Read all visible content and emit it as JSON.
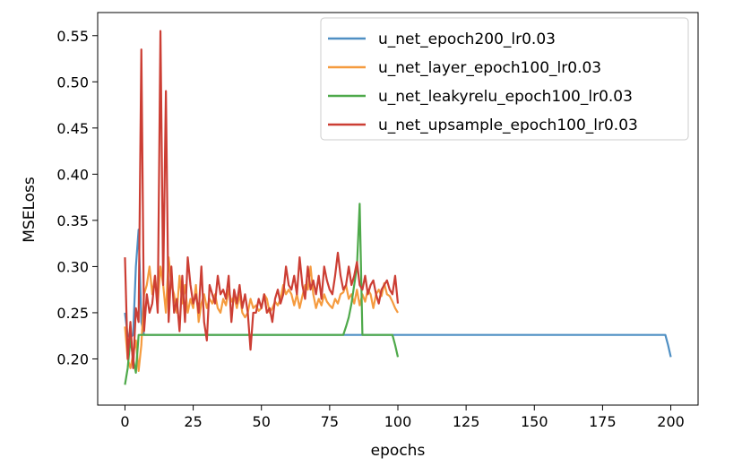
{
  "chart_data": {
    "type": "line",
    "xlabel": "epochs",
    "ylabel": "MSELoss",
    "xlim": [
      -10,
      210
    ],
    "ylim": [
      0.15,
      0.575
    ],
    "xticks": [
      0,
      25,
      50,
      75,
      100,
      125,
      150,
      175,
      200
    ],
    "yticks": [
      0.2,
      0.25,
      0.3,
      0.35,
      0.4,
      0.45,
      0.5,
      0.55
    ],
    "legend_position": "top-right",
    "grid": false,
    "series": [
      {
        "name": "u_net_epoch200_lr0.03",
        "color": "#4f8fc3",
        "x": [
          0,
          1,
          2,
          3,
          4,
          5,
          6,
          7,
          8,
          10,
          20,
          50,
          100,
          150,
          198,
          199,
          200
        ],
        "y": [
          0.25,
          0.225,
          0.223,
          0.226,
          0.3,
          0.34,
          0.24,
          0.226,
          0.226,
          0.226,
          0.226,
          0.226,
          0.226,
          0.226,
          0.226,
          0.215,
          0.202
        ]
      },
      {
        "name": "u_net_layer_epoch100_lr0.03",
        "color": "#f59b3f",
        "x": [
          0,
          1,
          2,
          3,
          4,
          5,
          6,
          7,
          8,
          9,
          10,
          11,
          12,
          13,
          14,
          15,
          16,
          17,
          18,
          19,
          20,
          21,
          22,
          23,
          24,
          25,
          26,
          27,
          28,
          29,
          30,
          31,
          32,
          33,
          34,
          35,
          36,
          37,
          38,
          39,
          40,
          41,
          42,
          43,
          44,
          45,
          46,
          47,
          48,
          49,
          50,
          51,
          52,
          53,
          54,
          55,
          56,
          57,
          58,
          59,
          60,
          61,
          62,
          63,
          64,
          65,
          66,
          67,
          68,
          69,
          70,
          71,
          72,
          73,
          74,
          75,
          76,
          77,
          78,
          79,
          80,
          81,
          82,
          83,
          84,
          85,
          86,
          87,
          88,
          89,
          90,
          91,
          92,
          93,
          94,
          95,
          96,
          97,
          98,
          99,
          100
        ],
        "y": [
          0.235,
          0.2,
          0.19,
          0.205,
          0.22,
          0.187,
          0.215,
          0.27,
          0.28,
          0.3,
          0.27,
          0.29,
          0.26,
          0.3,
          0.28,
          0.25,
          0.31,
          0.28,
          0.27,
          0.25,
          0.29,
          0.26,
          0.28,
          0.25,
          0.265,
          0.255,
          0.28,
          0.24,
          0.26,
          0.27,
          0.255,
          0.265,
          0.26,
          0.27,
          0.255,
          0.25,
          0.265,
          0.258,
          0.275,
          0.262,
          0.268,
          0.255,
          0.27,
          0.25,
          0.245,
          0.25,
          0.265,
          0.255,
          0.258,
          0.252,
          0.255,
          0.27,
          0.265,
          0.25,
          0.255,
          0.262,
          0.258,
          0.265,
          0.28,
          0.27,
          0.275,
          0.27,
          0.258,
          0.27,
          0.255,
          0.268,
          0.28,
          0.275,
          0.3,
          0.27,
          0.255,
          0.265,
          0.258,
          0.27,
          0.262,
          0.258,
          0.255,
          0.265,
          0.26,
          0.27,
          0.272,
          0.28,
          0.265,
          0.27,
          0.26,
          0.275,
          0.258,
          0.27,
          0.262,
          0.275,
          0.27,
          0.255,
          0.27,
          0.275,
          0.268,
          0.282,
          0.27,
          0.268,
          0.262,
          0.255,
          0.25
        ]
      },
      {
        "name": "u_net_leakyrelu_epoch100_lr0.03",
        "color": "#4ea94a",
        "x": [
          0,
          1,
          2,
          3,
          4,
          5,
          6,
          7,
          10,
          20,
          40,
          60,
          79,
          80,
          81,
          82,
          83,
          84,
          85,
          86,
          87,
          88,
          90,
          95,
          98,
          99,
          100
        ],
        "y": [
          0.172,
          0.19,
          0.222,
          0.2,
          0.185,
          0.226,
          0.226,
          0.226,
          0.226,
          0.226,
          0.226,
          0.226,
          0.226,
          0.226,
          0.235,
          0.245,
          0.26,
          0.28,
          0.3,
          0.368,
          0.226,
          0.226,
          0.226,
          0.226,
          0.226,
          0.215,
          0.202
        ]
      },
      {
        "name": "u_net_upsample_epoch100_lr0.03",
        "color": "#cc3e34",
        "x": [
          0,
          1,
          2,
          3,
          4,
          5,
          6,
          7,
          8,
          9,
          10,
          11,
          12,
          13,
          14,
          15,
          16,
          17,
          18,
          19,
          20,
          21,
          22,
          23,
          24,
          25,
          26,
          27,
          28,
          29,
          30,
          31,
          32,
          33,
          34,
          35,
          36,
          37,
          38,
          39,
          40,
          41,
          42,
          43,
          44,
          45,
          46,
          47,
          48,
          49,
          50,
          51,
          52,
          53,
          54,
          55,
          56,
          57,
          58,
          59,
          60,
          61,
          62,
          63,
          64,
          65,
          66,
          67,
          68,
          69,
          70,
          71,
          72,
          73,
          74,
          75,
          76,
          77,
          78,
          79,
          80,
          81,
          82,
          83,
          84,
          85,
          86,
          87,
          88,
          89,
          90,
          91,
          92,
          93,
          94,
          95,
          96,
          97,
          98,
          99,
          100
        ],
        "y": [
          0.31,
          0.2,
          0.24,
          0.19,
          0.255,
          0.24,
          0.535,
          0.23,
          0.27,
          0.25,
          0.26,
          0.29,
          0.25,
          0.555,
          0.28,
          0.49,
          0.24,
          0.3,
          0.25,
          0.265,
          0.23,
          0.29,
          0.24,
          0.31,
          0.28,
          0.26,
          0.27,
          0.25,
          0.3,
          0.24,
          0.22,
          0.28,
          0.27,
          0.26,
          0.29,
          0.27,
          0.275,
          0.265,
          0.29,
          0.24,
          0.275,
          0.26,
          0.28,
          0.255,
          0.27,
          0.25,
          0.21,
          0.25,
          0.25,
          0.265,
          0.255,
          0.27,
          0.25,
          0.255,
          0.24,
          0.265,
          0.275,
          0.26,
          0.27,
          0.3,
          0.28,
          0.275,
          0.29,
          0.27,
          0.31,
          0.28,
          0.265,
          0.3,
          0.275,
          0.285,
          0.27,
          0.29,
          0.265,
          0.3,
          0.285,
          0.275,
          0.27,
          0.29,
          0.315,
          0.29,
          0.275,
          0.28,
          0.3,
          0.28,
          0.29,
          0.305,
          0.28,
          0.275,
          0.29,
          0.27,
          0.28,
          0.285,
          0.27,
          0.26,
          0.275,
          0.28,
          0.285,
          0.275,
          0.27,
          0.29,
          0.26
        ]
      }
    ]
  }
}
